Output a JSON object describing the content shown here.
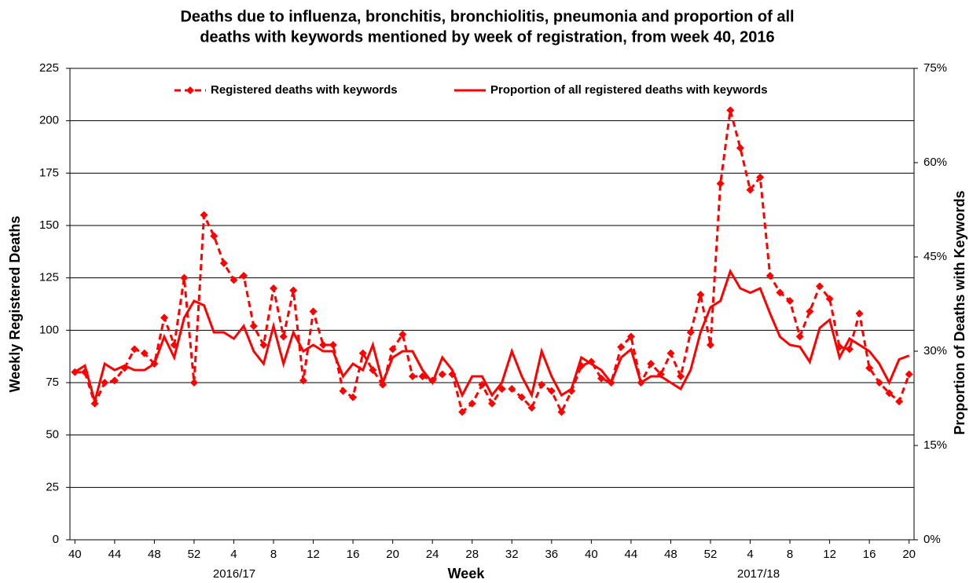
{
  "chart_data": {
    "type": "line",
    "title": [
      "Deaths due to influenza, bronchitis, bronchiolitis, pneumonia and proportion of all",
      "deaths with keywords mentioned by week of registration, from week 40, 2016"
    ],
    "x_label": "Week",
    "y_label": "Weekly Registered Deaths",
    "y2_label": "Proportion of Deaths with Keywords",
    "x_group_labels": [
      "2016/17",
      "2017/18"
    ],
    "categories": [
      "40",
      null,
      null,
      null,
      "44",
      null,
      null,
      null,
      "48",
      null,
      null,
      null,
      "52",
      null,
      null,
      null,
      "4",
      null,
      null,
      null,
      "8",
      null,
      null,
      null,
      "12",
      null,
      null,
      null,
      "16",
      null,
      null,
      null,
      "20",
      null,
      null,
      null,
      "24",
      null,
      null,
      null,
      "28",
      null,
      null,
      null,
      "32",
      null,
      null,
      null,
      "36",
      null,
      null,
      null,
      "40",
      null,
      null,
      null,
      "44",
      null,
      null,
      null,
      "48",
      null,
      null,
      null,
      "52",
      null,
      null,
      null,
      "4",
      null,
      null,
      null,
      "8",
      null,
      null,
      null,
      "12",
      null,
      null,
      null,
      "16",
      null,
      null,
      null,
      "20"
    ],
    "series": [
      {
        "name": "Registered deaths with keywords",
        "color": "#ff0000",
        "style": "dashed",
        "marker": "diamond",
        "values": [
          80,
          80,
          65,
          75,
          76,
          82,
          91,
          89,
          84,
          106,
          93,
          125,
          75,
          155,
          145,
          132,
          124,
          126,
          102,
          93,
          120,
          97,
          119,
          76,
          109,
          93,
          93,
          71,
          68,
          89,
          81,
          74,
          91,
          98,
          78,
          78,
          76,
          79,
          79,
          61,
          65,
          74,
          65,
          72,
          72,
          68,
          63,
          74,
          71,
          61,
          71,
          83,
          85,
          77,
          75,
          92,
          97,
          75,
          84,
          79,
          89,
          78,
          99,
          117,
          93,
          170,
          205,
          187,
          167,
          173,
          126,
          118,
          114,
          97,
          109,
          121,
          115,
          92,
          91,
          108,
          82,
          75,
          70,
          66,
          79
        ]
      },
      {
        "name": "Proportion of all registered deaths with keywords",
        "color": "#ff0000",
        "style": "solid",
        "axis": "y2",
        "values": [
          26.7,
          27.7,
          22,
          28,
          27,
          27.7,
          27,
          27,
          28,
          32.3,
          29,
          35.3,
          38,
          37.3,
          33,
          33,
          32,
          34,
          30,
          28,
          34,
          28,
          33,
          30,
          31,
          30,
          30,
          26,
          28,
          27,
          31,
          25,
          29,
          30,
          30,
          27,
          25,
          29,
          27,
          23,
          26,
          26,
          23,
          25,
          30,
          26,
          23,
          30,
          26,
          23,
          24,
          29,
          28,
          27,
          25,
          29,
          30.3,
          25,
          26,
          26,
          25,
          24,
          27,
          33,
          37,
          38,
          42.7,
          40,
          39.3,
          40,
          36,
          32.3,
          31,
          30.7,
          28.3,
          33.7,
          35,
          29,
          32,
          31,
          30,
          28,
          25,
          28.7,
          29.3
        ]
      }
    ],
    "ylim": [
      0,
      225
    ],
    "yticks": [
      0,
      25,
      50,
      75,
      100,
      125,
      150,
      175,
      200,
      225
    ],
    "y2lim": [
      0,
      75
    ],
    "y2ticks": [
      {
        "value": 0,
        "label": "0%"
      },
      {
        "value": 15,
        "label": "15%"
      },
      {
        "value": 30,
        "label": "30%"
      },
      {
        "value": 45,
        "label": "45%"
      },
      {
        "value": 60,
        "label": "60%"
      },
      {
        "value": 75,
        "label": "75%"
      }
    ],
    "grid": true,
    "legend": "top"
  }
}
